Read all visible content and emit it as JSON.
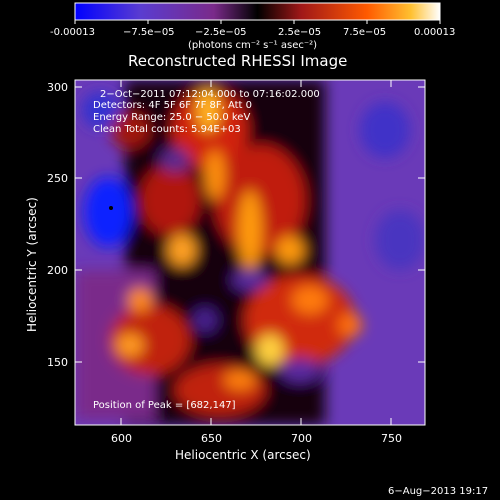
{
  "colorbar": {
    "tick_labels": [
      "-0.00013",
      "−7.5e−05",
      "−2.5e−05",
      "2.5e−05",
      "7.5e−05",
      "0.00013"
    ],
    "units_label": "(photons cm⁻² s⁻¹ asec⁻²)"
  },
  "image": {
    "title": "Reconstructed RHESSI Image",
    "info_lines": [
      "2−Oct−2011 07:12:04.000 to 07:16:02.000",
      "Detectors: 4F 5F 6F 7F 8F, Att 0",
      "Energy Range: 25.0 − 50.0 keV",
      "Clean     Total counts: 5.94E+03"
    ],
    "peak_label": "Position of Peak = [682,147]",
    "xlabel": "Heliocentric X (arcsec)",
    "ylabel": "Heliocentric Y (arcsec)",
    "x_ticks": [
      "600",
      "650",
      "700",
      "750"
    ],
    "y_ticks": [
      "150",
      "200",
      "250",
      "300"
    ],
    "xlim": [
      572,
      765
    ],
    "ylim": [
      112,
      306
    ]
  },
  "footer": {
    "date": "6−Aug−2013 19:17"
  },
  "colors": {
    "background": "#000000",
    "colormap": [
      "#0000ff",
      "#6a3acb",
      "#000000",
      "#8a1010",
      "#ff5000",
      "#ffb000",
      "#ffffe0"
    ]
  }
}
